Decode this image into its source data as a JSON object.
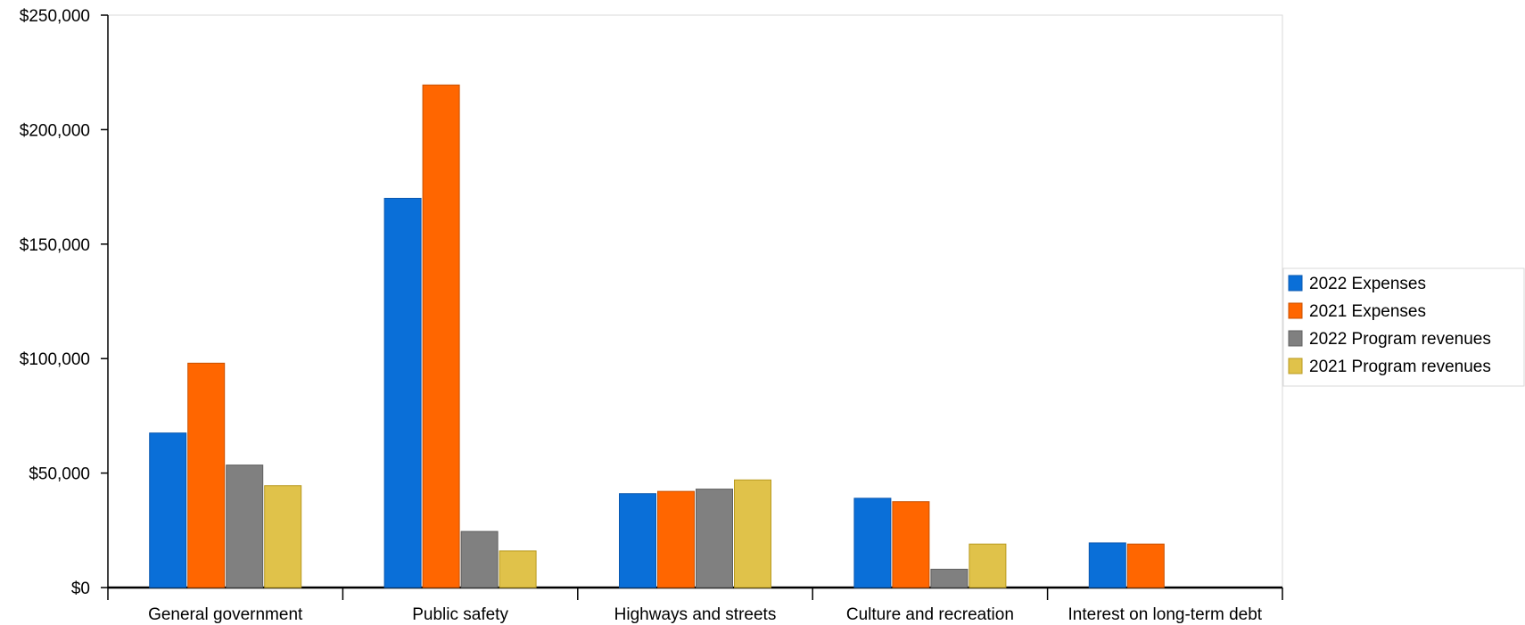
{
  "chart_data": {
    "type": "bar",
    "categories": [
      "General government",
      "Public safety",
      "Highways and streets",
      "Culture and recreation",
      "Interest on long-term debt"
    ],
    "series": [
      {
        "name": "2022 Expenses",
        "color": "#0a6fd8",
        "stroke": "#0a58b0",
        "values": [
          67500,
          170000,
          41000,
          39000,
          19500
        ]
      },
      {
        "name": "2021 Expenses",
        "color": "#ff6600",
        "stroke": "#c85000",
        "values": [
          98000,
          219500,
          42000,
          37500,
          19000
        ]
      },
      {
        "name": "2022 Program revenues",
        "color": "#808080",
        "stroke": "#606060",
        "values": [
          53500,
          24500,
          43000,
          8000,
          0
        ]
      },
      {
        "name": "2021 Program revenues",
        "color": "#e0c24a",
        "stroke": "#b89a20",
        "values": [
          44500,
          16000,
          47000,
          19000,
          0
        ]
      }
    ],
    "y_ticks": [
      0,
      50000,
      100000,
      150000,
      200000,
      250000
    ],
    "y_tick_labels": [
      "$0",
      "$50,000",
      "$100,000",
      "$150,000",
      "$200,000",
      "$250,000"
    ],
    "ylim": [
      0,
      250000
    ],
    "title": "",
    "xlabel": "",
    "ylabel": "",
    "grid": false,
    "legend_position": "right"
  }
}
